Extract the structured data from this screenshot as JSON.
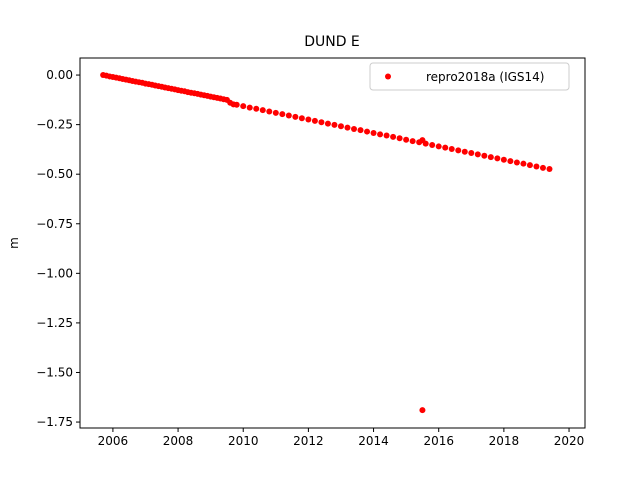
{
  "chart_data": {
    "type": "scatter",
    "title": "DUND E",
    "ylabel": "m",
    "xlim": [
      2004.99,
      2020.49
    ],
    "ylim": [
      -1.78,
      0.086
    ],
    "xticks": [
      2006,
      2008,
      2010,
      2012,
      2014,
      2016,
      2018,
      2020
    ],
    "yticks": [
      {
        "value": 0,
        "label": "0.00"
      },
      {
        "value": -0.25,
        "label": "−0.25"
      },
      {
        "value": -0.5,
        "label": "−0.50"
      },
      {
        "value": -0.75,
        "label": "−0.75"
      },
      {
        "value": -1.0,
        "label": "−1.00"
      },
      {
        "value": -1.25,
        "label": "−1.25"
      },
      {
        "value": -1.5,
        "label": "−1.50"
      },
      {
        "value": -1.75,
        "label": "−1.75"
      }
    ],
    "legend": "upper right",
    "grid": false,
    "series": [
      {
        "name": "repro2018a (IGS14)",
        "color": "#ff0000",
        "x": [
          2005.7,
          2005.8,
          2005.9,
          2006.0,
          2006.1,
          2006.2,
          2006.3,
          2006.4,
          2006.5,
          2006.6,
          2006.7,
          2006.8,
          2006.9,
          2007.0,
          2007.1,
          2007.2,
          2007.3,
          2007.4,
          2007.5,
          2007.6,
          2007.7,
          2007.8,
          2007.9,
          2008.0,
          2008.1,
          2008.2,
          2008.3,
          2008.4,
          2008.5,
          2008.6,
          2008.7,
          2008.8,
          2008.9,
          2009.0,
          2009.1,
          2009.2,
          2009.3,
          2009.4,
          2009.5,
          2009.6,
          2009.7,
          2009.8,
          2010.0,
          2010.2,
          2010.4,
          2010.6,
          2010.8,
          2011.0,
          2011.2,
          2011.4,
          2011.6,
          2011.8,
          2012.0,
          2012.2,
          2012.4,
          2012.6,
          2012.8,
          2013.0,
          2013.2,
          2013.4,
          2013.6,
          2013.8,
          2014.0,
          2014.2,
          2014.4,
          2014.6,
          2014.8,
          2015.0,
          2015.2,
          2015.4,
          2015.6,
          2015.8,
          2016.0,
          2016.2,
          2016.4,
          2016.6,
          2016.8,
          2017.0,
          2017.2,
          2017.4,
          2017.6,
          2017.8,
          2018.0,
          2018.2,
          2018.4,
          2018.6,
          2018.8,
          2019.0,
          2019.2,
          2019.4,
          2015.5,
          2015.5
        ],
        "values": [
          0.0,
          -0.003,
          -0.007,
          -0.01,
          -0.013,
          -0.016,
          -0.02,
          -0.023,
          -0.026,
          -0.03,
          -0.033,
          -0.036,
          -0.039,
          -0.043,
          -0.046,
          -0.049,
          -0.053,
          -0.056,
          -0.059,
          -0.063,
          -0.066,
          -0.069,
          -0.072,
          -0.076,
          -0.079,
          -0.082,
          -0.086,
          -0.089,
          -0.092,
          -0.095,
          -0.099,
          -0.102,
          -0.105,
          -0.109,
          -0.112,
          -0.115,
          -0.118,
          -0.122,
          -0.125,
          -0.14,
          -0.148,
          -0.15,
          -0.157,
          -0.164,
          -0.17,
          -0.177,
          -0.184,
          -0.191,
          -0.197,
          -0.204,
          -0.211,
          -0.218,
          -0.224,
          -0.231,
          -0.238,
          -0.245,
          -0.251,
          -0.258,
          -0.265,
          -0.272,
          -0.278,
          -0.285,
          -0.292,
          -0.299,
          -0.305,
          -0.312,
          -0.319,
          -0.326,
          -0.333,
          -0.339,
          -0.346,
          -0.353,
          -0.36,
          -0.366,
          -0.373,
          -0.38,
          -0.387,
          -0.393,
          -0.4,
          -0.407,
          -0.414,
          -0.42,
          -0.427,
          -0.434,
          -0.441,
          -0.447,
          -0.454,
          -0.461,
          -0.468,
          -0.474,
          -0.328,
          -1.69
        ]
      }
    ]
  }
}
